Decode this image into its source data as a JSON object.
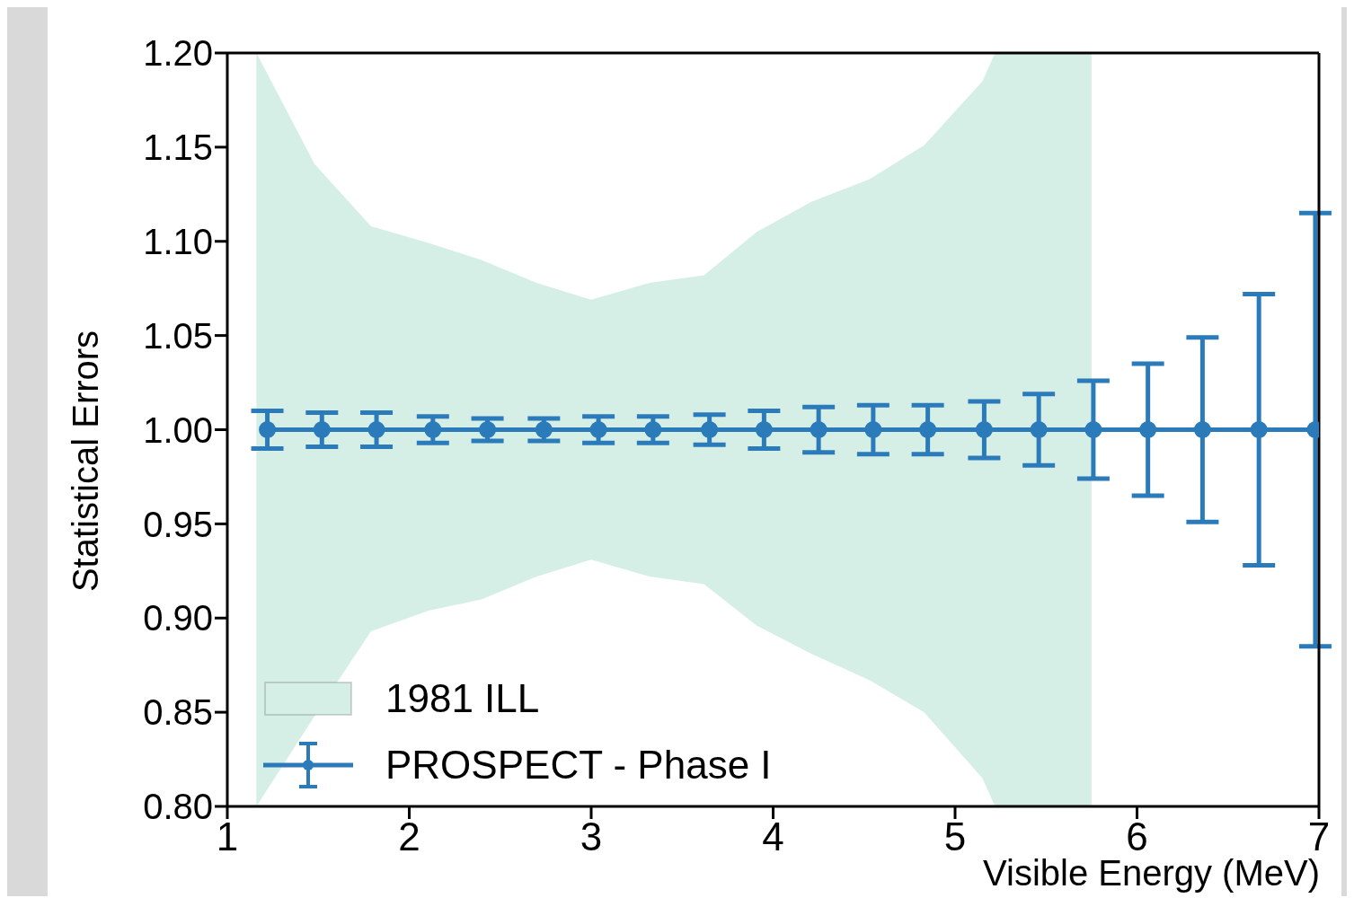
{
  "chart_data": {
    "type": "line",
    "xlabel": "Visible Energy (MeV)",
    "ylabel": "Statistical Errors",
    "xlim": [
      1,
      7
    ],
    "xticks": [
      1,
      2,
      3,
      4,
      5,
      6,
      7
    ],
    "ylim": [
      0.8,
      1.2
    ],
    "yticks": [
      {
        "value": 0.8,
        "label": "0.80"
      },
      {
        "value": 0.85,
        "label": "0.85"
      },
      {
        "value": 0.9,
        "label": "0.90"
      },
      {
        "value": 0.95,
        "label": "0.95"
      },
      {
        "value": 1.0,
        "label": "1.00"
      },
      {
        "value": 1.05,
        "label": "1.05"
      },
      {
        "value": 1.1,
        "label": "1.10"
      },
      {
        "value": 1.15,
        "label": "1.15"
      },
      {
        "value": 1.2,
        "label": "1.20"
      }
    ],
    "grid": false,
    "legend": "bottom left",
    "series": [
      {
        "name": "1981 ILL",
        "type": "area",
        "color": "#d5efe7",
        "x": [
          1.16,
          1.48,
          1.79,
          2.11,
          2.4,
          2.7,
          3.0,
          3.32,
          3.62,
          3.91,
          4.21,
          4.53,
          4.83,
          5.15,
          5.22,
          5.75
        ],
        "values": [
          null,
          null,
          null,
          null,
          null,
          null,
          null,
          null,
          null,
          null,
          null,
          null,
          null,
          null,
          null,
          null
        ],
        "lower": [
          0.8,
          0.848,
          0.893,
          0.904,
          0.91,
          0.922,
          0.931,
          0.922,
          0.918,
          0.896,
          0.881,
          0.867,
          0.85,
          0.815,
          0.8,
          0.8
        ],
        "upper": [
          1.2,
          1.141,
          1.108,
          1.099,
          1.09,
          1.078,
          1.069,
          1.078,
          1.082,
          1.105,
          1.121,
          1.133,
          1.151,
          1.185,
          1.2,
          1.2
        ]
      },
      {
        "name": "PROSPECT - Phase I",
        "color": "#2b7bba",
        "marker": "circle",
        "x": [
          1.22,
          1.52,
          1.82,
          2.13,
          2.43,
          2.74,
          3.04,
          3.34,
          3.65,
          3.95,
          4.25,
          4.55,
          4.85,
          5.16,
          5.46,
          5.76,
          6.06,
          6.36,
          6.67,
          6.98
        ],
        "values": [
          1,
          1,
          1,
          1,
          1,
          1,
          1,
          1,
          1,
          1,
          1,
          1,
          1,
          1,
          1,
          1,
          1,
          1,
          1,
          1
        ],
        "errors": [
          0.01,
          0.009,
          0.009,
          0.007,
          0.006,
          0.006,
          0.007,
          0.007,
          0.008,
          0.01,
          0.012,
          0.013,
          0.013,
          0.015,
          0.019,
          0.026,
          0.035,
          0.049,
          0.072,
          0.115
        ]
      }
    ]
  }
}
